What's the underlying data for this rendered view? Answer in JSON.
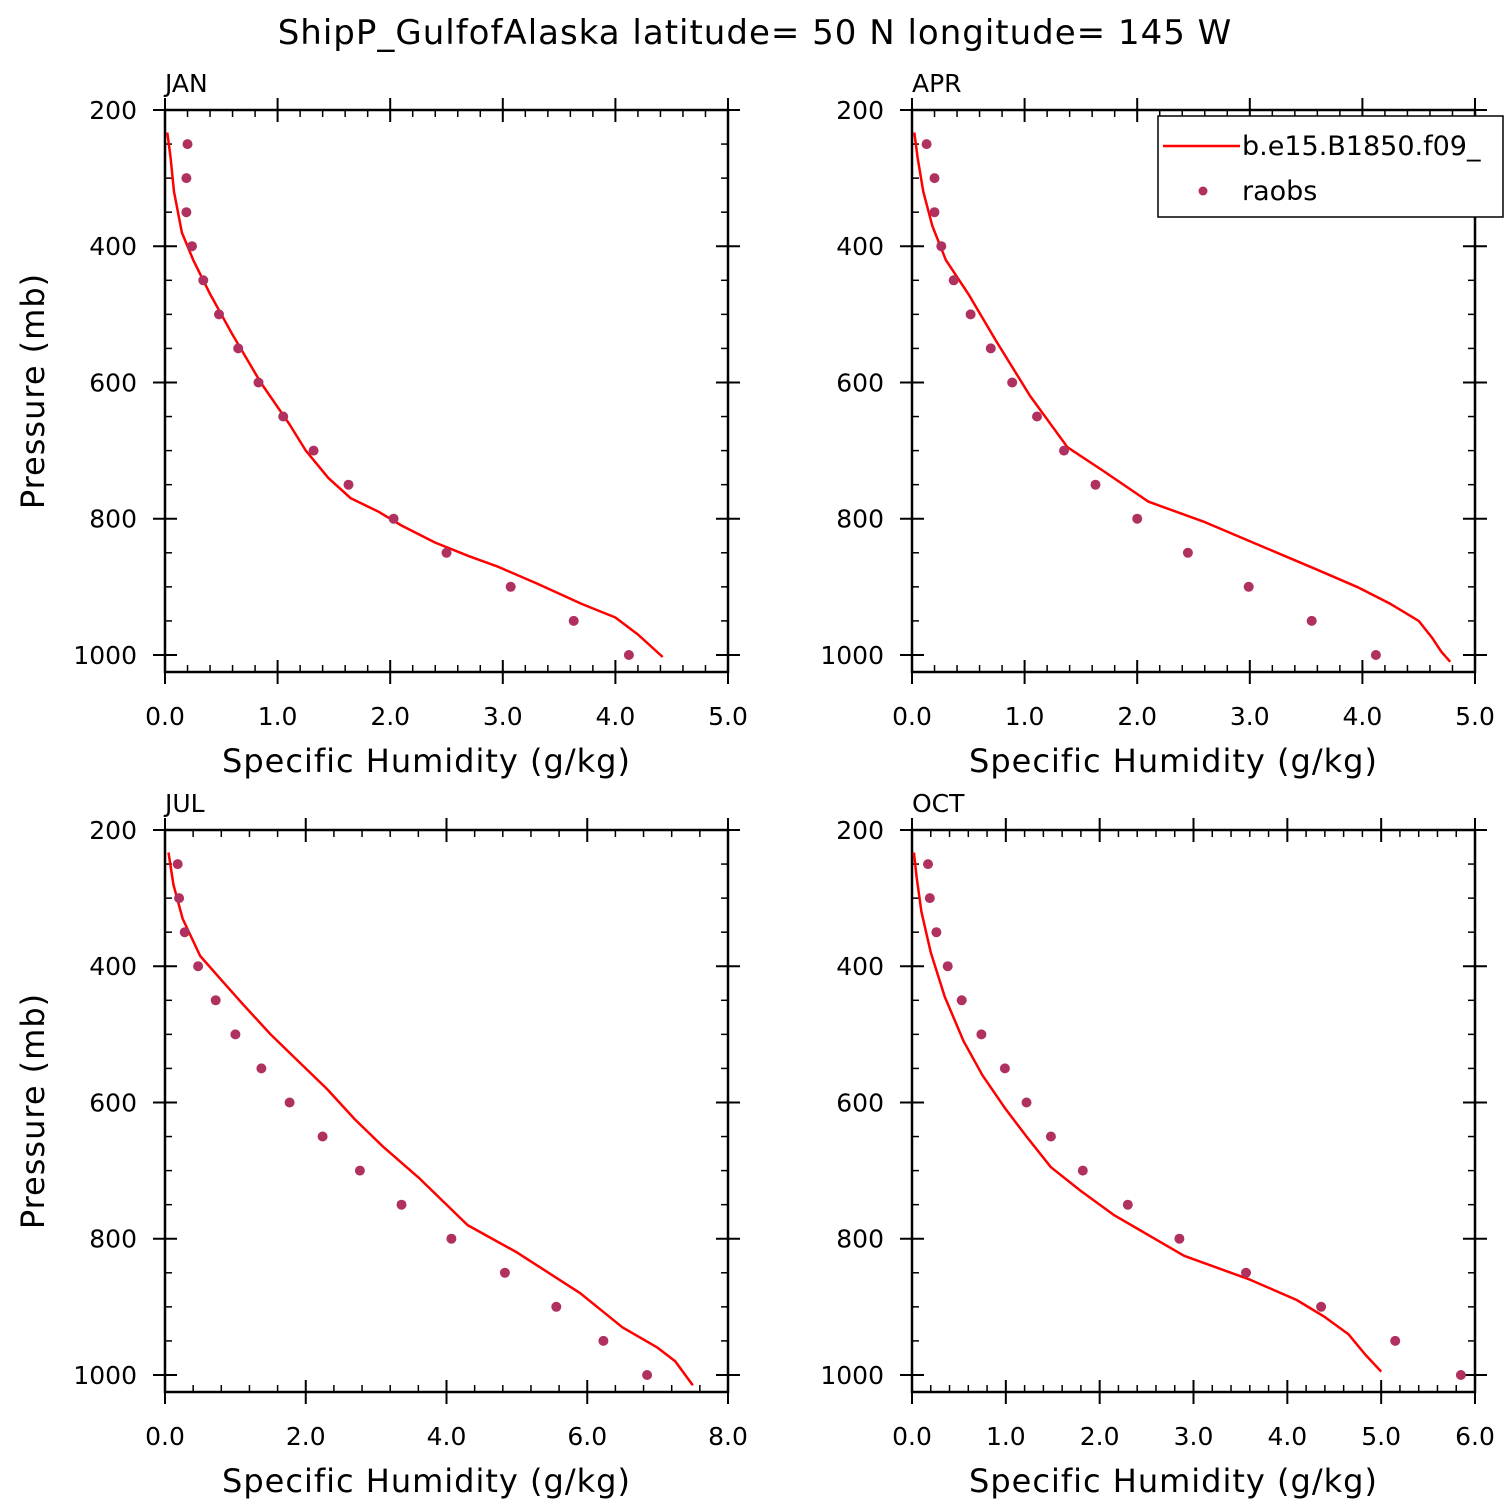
{
  "title": "ShipP_GulfofAlaska  latitude= 50 N longitude= 145 W",
  "colors": {
    "model": "#ff0000",
    "obs": "#b03060"
  },
  "legend": {
    "model_label": "b.e15.B1850.f09_",
    "obs_label": "raobs",
    "placement": "top-right of APR panel"
  },
  "chart_data": [
    {
      "type": "line",
      "title": "JAN",
      "xlabel": "Specific Humidity (g/kg)",
      "ylabel": "Pressure (mb)",
      "xlim": [
        0,
        5
      ],
      "ylim": [
        200,
        1025
      ],
      "y_inverted": true,
      "xticks": [
        "0.0",
        "1.0",
        "2.0",
        "3.0",
        "4.0",
        "5.0"
      ],
      "yticks": [
        "200",
        "400",
        "600",
        "800",
        "1000"
      ],
      "series": [
        {
          "name": "b.e15.B1850.f09_",
          "kind": "line",
          "x": [
            0.02,
            0.05,
            0.08,
            0.15,
            0.25,
            0.4,
            0.6,
            0.85,
            1.1,
            1.25,
            1.45,
            1.65,
            1.9,
            2.1,
            2.4,
            2.7,
            2.95,
            3.3,
            3.7,
            4.0,
            4.2,
            4.42
          ],
          "y": [
            233,
            270,
            320,
            380,
            420,
            470,
            530,
            600,
            660,
            700,
            740,
            770,
            790,
            810,
            835,
            855,
            870,
            895,
            925,
            945,
            970,
            1003
          ]
        },
        {
          "name": "raobs",
          "kind": "scatter",
          "x": [
            0.2,
            0.19,
            0.19,
            0.24,
            0.34,
            0.48,
            0.65,
            0.83,
            1.05,
            1.32,
            1.63,
            2.03,
            2.5,
            3.07,
            3.63,
            4.12
          ],
          "y": [
            250,
            300,
            350,
            400,
            450,
            500,
            550,
            600,
            650,
            700,
            750,
            800,
            850,
            900,
            950,
            1000
          ]
        }
      ]
    },
    {
      "type": "line",
      "title": "APR",
      "xlabel": "Specific Humidity (g/kg)",
      "ylabel": "",
      "xlim": [
        0,
        5
      ],
      "ylim": [
        200,
        1025
      ],
      "y_inverted": true,
      "xticks": [
        "0.0",
        "1.0",
        "2.0",
        "3.0",
        "4.0",
        "5.0"
      ],
      "yticks": [
        "200",
        "400",
        "600",
        "800",
        "1000"
      ],
      "series": [
        {
          "name": "b.e15.B1850.f09_",
          "kind": "line",
          "x": [
            0.02,
            0.05,
            0.1,
            0.18,
            0.3,
            0.5,
            0.75,
            1.05,
            1.38,
            1.7,
            2.1,
            2.6,
            3.1,
            3.6,
            3.95,
            4.25,
            4.5,
            4.62,
            4.7,
            4.78
          ],
          "y": [
            233,
            270,
            320,
            370,
            420,
            470,
            540,
            620,
            695,
            730,
            775,
            805,
            840,
            875,
            900,
            925,
            950,
            975,
            995,
            1010
          ]
        },
        {
          "name": "raobs",
          "kind": "scatter",
          "x": [
            0.13,
            0.2,
            0.2,
            0.26,
            0.37,
            0.52,
            0.7,
            0.89,
            1.11,
            1.35,
            1.63,
            2.0,
            2.45,
            2.99,
            3.55,
            4.12
          ],
          "y": [
            250,
            300,
            350,
            400,
            450,
            500,
            550,
            600,
            650,
            700,
            750,
            800,
            850,
            900,
            950,
            1000
          ]
        }
      ]
    },
    {
      "type": "line",
      "title": "JUL",
      "xlabel": "Specific Humidity (g/kg)",
      "ylabel": "Pressure (mb)",
      "xlim": [
        0,
        8
      ],
      "ylim": [
        200,
        1025
      ],
      "y_inverted": true,
      "xticks": [
        "0.0",
        "2.0",
        "4.0",
        "6.0",
        "8.0"
      ],
      "yticks": [
        "200",
        "400",
        "600",
        "800",
        "1000"
      ],
      "series": [
        {
          "name": "b.e15.B1850.f09_",
          "kind": "line",
          "x": [
            0.05,
            0.12,
            0.25,
            0.5,
            0.8,
            1.1,
            1.5,
            1.9,
            2.3,
            2.7,
            3.1,
            3.6,
            4.3,
            5.0,
            5.9,
            6.5,
            7.0,
            7.25,
            7.5
          ],
          "y": [
            233,
            280,
            330,
            385,
            420,
            455,
            500,
            540,
            580,
            625,
            665,
            710,
            780,
            820,
            880,
            930,
            960,
            980,
            1015
          ]
        },
        {
          "name": "raobs",
          "kind": "scatter",
          "x": [
            0.18,
            0.2,
            0.28,
            0.47,
            0.72,
            1.0,
            1.37,
            1.77,
            2.24,
            2.77,
            3.36,
            4.07,
            4.83,
            5.56,
            6.23,
            6.85
          ],
          "y": [
            250,
            300,
            350,
            400,
            450,
            500,
            550,
            600,
            650,
            700,
            750,
            800,
            850,
            900,
            950,
            1000
          ]
        }
      ]
    },
    {
      "type": "line",
      "title": "OCT",
      "xlabel": "Specific Humidity (g/kg)",
      "ylabel": "",
      "xlim": [
        0,
        6
      ],
      "ylim": [
        200,
        1025
      ],
      "y_inverted": true,
      "xticks": [
        "0.0",
        "1.0",
        "2.0",
        "3.0",
        "4.0",
        "5.0",
        "6.0"
      ],
      "yticks": [
        "200",
        "400",
        "600",
        "800",
        "1000"
      ],
      "series": [
        {
          "name": "b.e15.B1850.f09_",
          "kind": "line",
          "x": [
            0.02,
            0.05,
            0.1,
            0.2,
            0.35,
            0.55,
            0.75,
            1.0,
            1.22,
            1.48,
            1.8,
            2.15,
            2.9,
            3.6,
            4.1,
            4.4,
            4.65,
            4.83,
            5.0
          ],
          "y": [
            233,
            270,
            320,
            380,
            445,
            510,
            560,
            610,
            650,
            695,
            730,
            765,
            825,
            860,
            890,
            915,
            940,
            970,
            995
          ]
        },
        {
          "name": "raobs",
          "kind": "scatter",
          "x": [
            0.17,
            0.19,
            0.26,
            0.38,
            0.53,
            0.74,
            0.99,
            1.22,
            1.48,
            1.82,
            2.3,
            2.85,
            3.56,
            4.36,
            5.15,
            5.85
          ],
          "y": [
            250,
            300,
            350,
            400,
            450,
            500,
            550,
            600,
            650,
            700,
            750,
            800,
            850,
            900,
            950,
            1000
          ]
        }
      ]
    }
  ]
}
